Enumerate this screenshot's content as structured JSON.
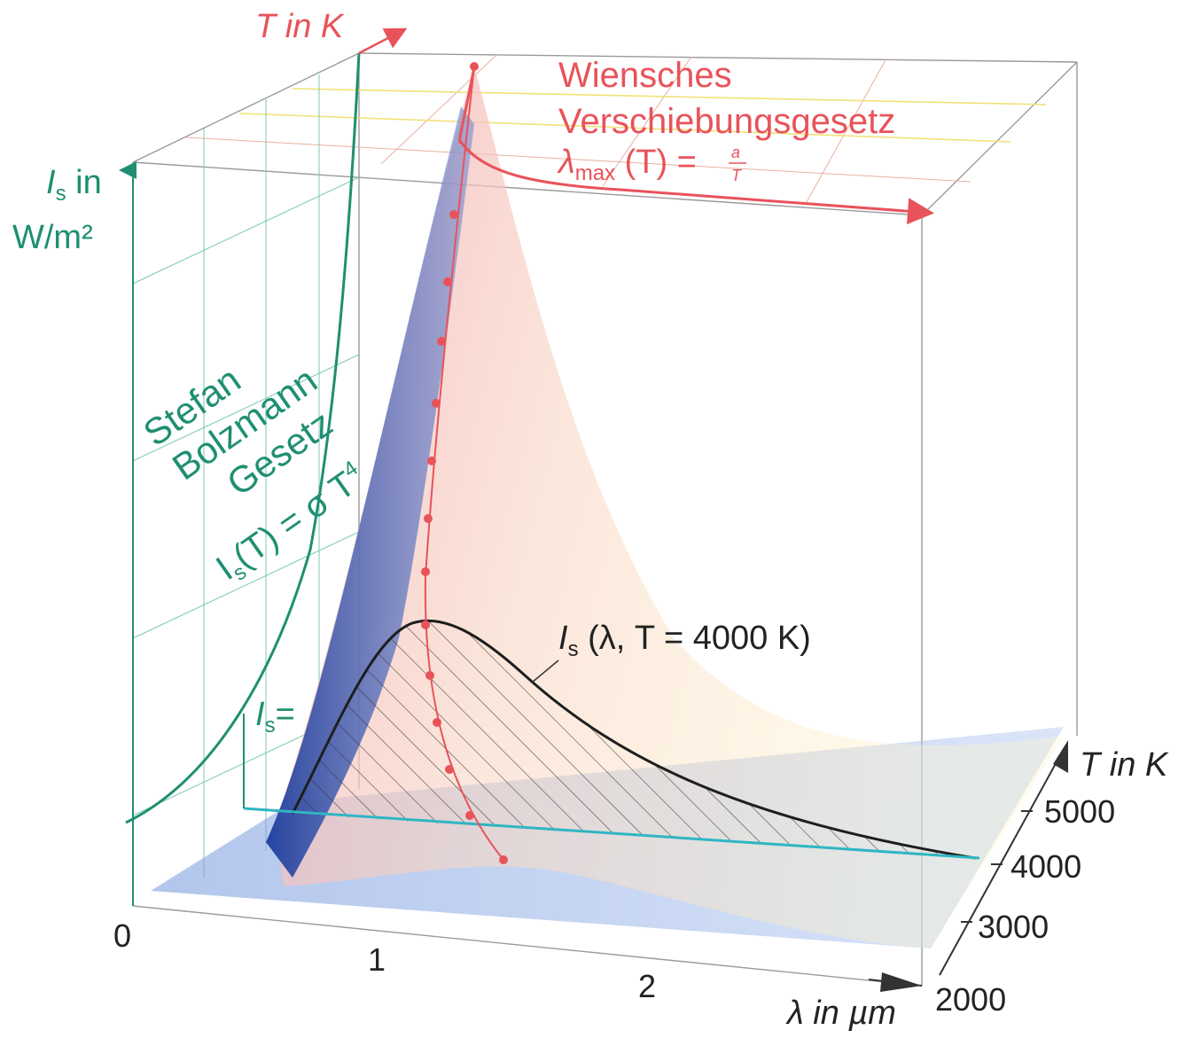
{
  "labels": {
    "t_axis_top": "T in K",
    "is_axis_line1": "I",
    "is_axis_sub": "s",
    "is_axis_line1_rest": " in",
    "is_axis_line2": "W/m²",
    "wien_line1": "Wiensches",
    "wien_line2": "Verschiebungsgesetz",
    "wien_formula_lambda": "λ",
    "wien_formula_sub": "max",
    "wien_formula_rest": " (T) = ",
    "wien_formula_num": "a",
    "wien_formula_den": "T",
    "stefan_line1": "Stefan",
    "stefan_line2": "Bolzmann",
    "stefan_line3": "Gesetz",
    "stefan_formula": "I",
    "stefan_formula_sub": "s",
    "stefan_formula_rest": "(T) = σ T",
    "stefan_formula_sup": "4",
    "is_eq": "I",
    "is_eq_sub": "s",
    "is_eq_rest": "=",
    "curve_label": "I",
    "curve_label_sub": "s",
    "curve_label_rest": " (λ, T = 4000 K)",
    "t_axis_right": "T in K",
    "lambda_axis": "λ in µm"
  },
  "ticks": {
    "lambda": [
      "0",
      "1",
      "2"
    ],
    "temperature": [
      "5000",
      "4000",
      "3000",
      "2000"
    ]
  },
  "colors": {
    "red": "#e8535a",
    "green": "#1f8f72",
    "blue_surface": "#3a5bb0",
    "floor": "#a9c0ec"
  }
}
